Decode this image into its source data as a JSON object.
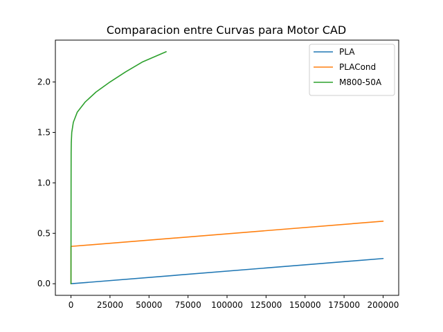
{
  "chart_data": {
    "type": "line",
    "title": "Comparacion entre Curvas para Motor CAD",
    "xlabel": "",
    "ylabel": "",
    "xlim": [
      -10000,
      210000
    ],
    "ylim": [
      -0.115,
      2.415
    ],
    "x_ticks": [
      0,
      25000,
      50000,
      75000,
      100000,
      125000,
      150000,
      175000,
      200000
    ],
    "x_tick_labels": [
      "0",
      "25000",
      "50000",
      "75000",
      "100000",
      "125000",
      "150000",
      "175000",
      "200000"
    ],
    "y_ticks": [
      0,
      0.5,
      1.0,
      1.5,
      2.0
    ],
    "y_tick_labels": [
      "0.0",
      "0.5",
      "1.0",
      "1.5",
      "2.0"
    ],
    "grid": false,
    "legend_position": "top-right",
    "series": [
      {
        "name": "PLA",
        "color": "#1f77b4",
        "points": [
          [
            0,
            0.0
          ],
          [
            200000,
            0.25
          ]
        ]
      },
      {
        "name": "PLACond",
        "color": "#ff7f0e",
        "points": [
          [
            0,
            0.0
          ],
          [
            0,
            0.37
          ],
          [
            200000,
            0.62
          ]
        ]
      },
      {
        "name": "M800-50A",
        "color": "#2ca02c",
        "points": [
          [
            0,
            0.0
          ],
          [
            30,
            0.5
          ],
          [
            60,
            1.0
          ],
          [
            100,
            1.3
          ],
          [
            200,
            1.4
          ],
          [
            500,
            1.5
          ],
          [
            1500,
            1.6
          ],
          [
            4000,
            1.7
          ],
          [
            9000,
            1.8
          ],
          [
            16000,
            1.9
          ],
          [
            25000,
            2.0
          ],
          [
            35000,
            2.1
          ],
          [
            46000,
            2.2
          ],
          [
            61000,
            2.3
          ]
        ]
      }
    ]
  }
}
